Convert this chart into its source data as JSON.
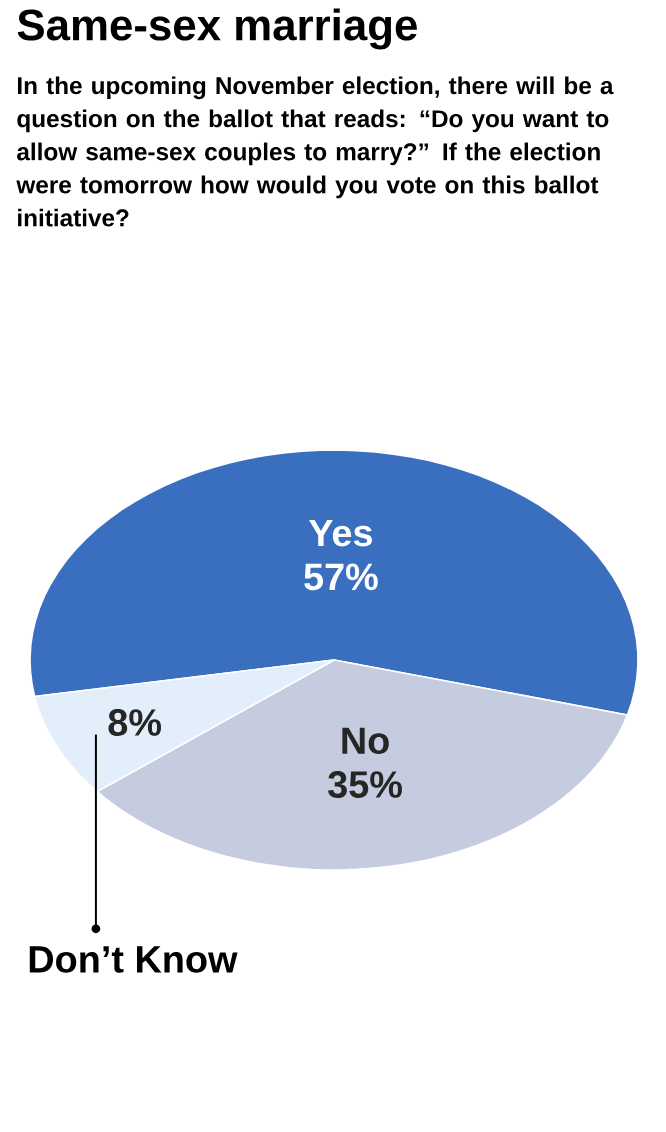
{
  "chart_data": {
    "type": "pie",
    "title": "Same-sex marriage",
    "subtitle": "In the upcoming November election, there will be a question on the ballot that reads: “Do you want to allow same-sex couples to marry?” If the election were tomorrow how would you vote on this ballot initiative?",
    "categories": [
      "Yes",
      "No",
      "Don’t Know"
    ],
    "values": [
      57,
      35,
      8
    ],
    "value_labels": [
      "57%",
      "35%",
      "8%"
    ],
    "colors": [
      "#3a6fc0",
      "#c6cce0",
      "#e2eefa"
    ]
  }
}
